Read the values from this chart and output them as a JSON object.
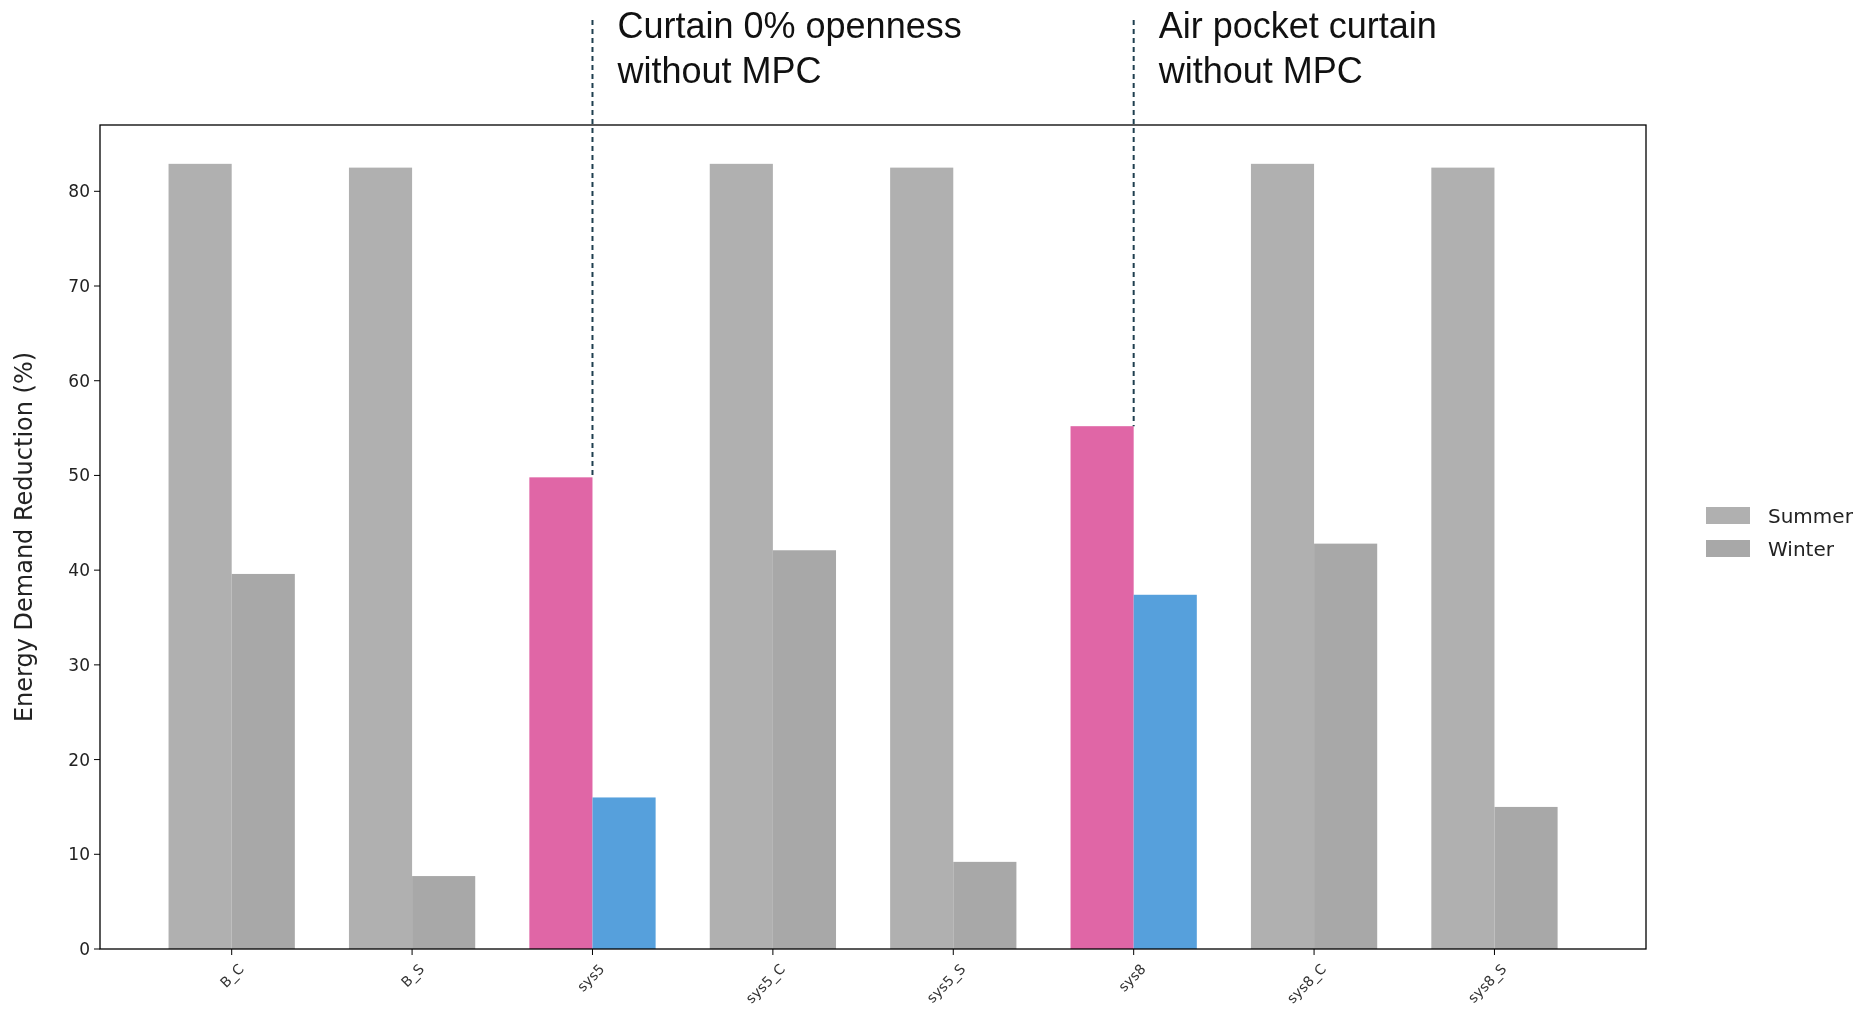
{
  "chart_data": {
    "type": "bar",
    "ylabel": "Energy Demand Reduction (%)",
    "categories": [
      "B_C",
      "B_S",
      "sys5",
      "sys5_C",
      "sys5_S",
      "sys8",
      "sys8_C",
      "sys8_S"
    ],
    "series": [
      {
        "name": "Summer",
        "color": "#b0b0b0",
        "colors": [
          "#b0b0b0",
          "#b0b0b0",
          "#e066a6",
          "#b0b0b0",
          "#b0b0b0",
          "#e066a6",
          "#b0b0b0",
          "#b0b0b0"
        ],
        "values": [
          82.9,
          82.5,
          49.8,
          82.9,
          82.5,
          55.2,
          82.9,
          82.5
        ]
      },
      {
        "name": "Winter",
        "color": "#a8a8a8",
        "colors": [
          "#a8a8a8",
          "#a8a8a8",
          "#56a0dc",
          "#a8a8a8",
          "#a8a8a8",
          "#56a0dc",
          "#a8a8a8",
          "#a8a8a8"
        ],
        "values": [
          39.6,
          7.7,
          16.0,
          42.1,
          9.2,
          37.4,
          42.8,
          15.0
        ]
      }
    ],
    "ylim": [
      0,
      87
    ],
    "yticks": [
      0,
      10,
      20,
      30,
      40,
      50,
      60,
      70,
      80
    ],
    "grid": false,
    "legend": "right",
    "annotations": [
      {
        "text": "Curtain 0% openness\nwithout MPC",
        "x": "sys5",
        "y": 49.8
      },
      {
        "text": "Air pocket curtain\nwithout MPC",
        "x": "sys8",
        "y": 55.2
      }
    ]
  }
}
